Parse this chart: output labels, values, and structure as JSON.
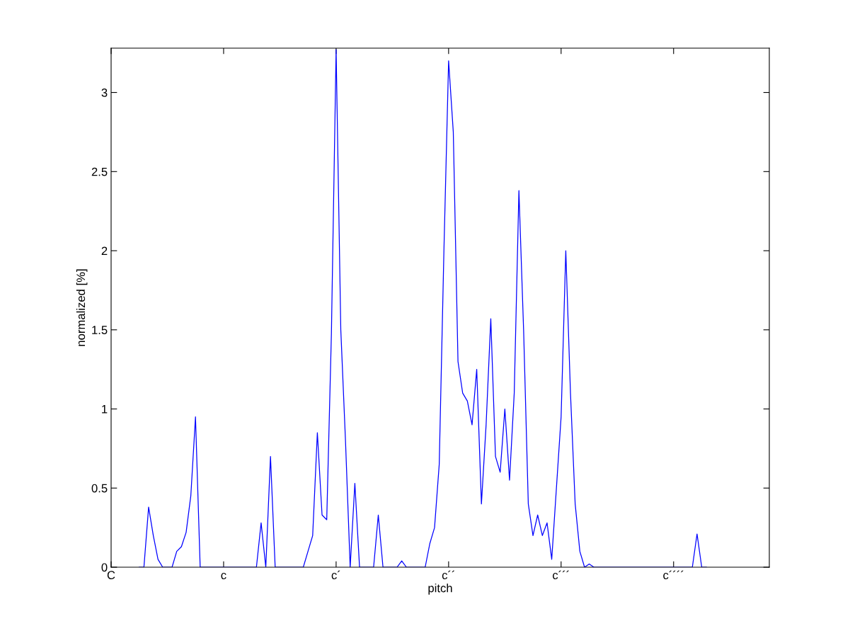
{
  "chart_data": {
    "type": "line",
    "xlabel": "pitch",
    "ylabel": "normalized [%]",
    "ylim": [
      0,
      3.28
    ],
    "yticks": [
      0,
      0.5,
      1,
      1.5,
      2,
      2.5,
      3
    ],
    "grid": false,
    "legend": false,
    "marker": "none",
    "line_style": "solid",
    "categories": [
      "C",
      null,
      null,
      null,
      null,
      null,
      null,
      null,
      null,
      null,
      null,
      null,
      null,
      null,
      null,
      null,
      null,
      null,
      null,
      null,
      null,
      null,
      null,
      null,
      "c",
      null,
      null,
      null,
      null,
      null,
      null,
      null,
      null,
      null,
      null,
      null,
      null,
      null,
      null,
      null,
      null,
      null,
      null,
      null,
      null,
      null,
      null,
      null,
      "c´",
      null,
      null,
      null,
      null,
      null,
      null,
      null,
      null,
      null,
      null,
      null,
      null,
      null,
      null,
      null,
      null,
      null,
      null,
      null,
      null,
      null,
      null,
      null,
      "c´´",
      null,
      null,
      null,
      null,
      null,
      null,
      null,
      null,
      null,
      null,
      null,
      null,
      null,
      null,
      null,
      null,
      null,
      null,
      null,
      null,
      null,
      null,
      null,
      "c´´´",
      null,
      null,
      null,
      null,
      null,
      null,
      null,
      null,
      null,
      null,
      null,
      null,
      null,
      null,
      null,
      null,
      null,
      null,
      null,
      null,
      null,
      null,
      null,
      "c´´´´",
      null,
      null,
      null,
      null,
      null,
      null,
      null,
      null,
      null,
      null,
      null,
      null,
      null,
      null,
      null,
      null,
      null,
      null,
      null,
      null
    ],
    "series": [
      {
        "color": "#0000ff",
        "values": [
          null,
          null,
          null,
          null,
          null,
          null,
          0,
          0,
          0.38,
          0.2,
          0.05,
          0,
          0,
          0,
          0.1,
          0.13,
          0.22,
          0.45,
          0.95,
          0,
          0,
          0,
          0,
          0,
          0,
          0,
          0,
          0,
          0,
          0,
          0,
          0,
          0.28,
          0,
          0.7,
          0,
          0,
          0,
          0,
          0,
          0,
          0,
          0.1,
          0.2,
          0.85,
          0.33,
          0.3,
          1.48,
          3.27,
          1.5,
          0.8,
          0,
          0.53,
          0,
          0,
          0,
          0,
          0.33,
          0,
          0,
          0,
          0,
          0.04,
          0,
          0,
          0,
          0,
          0,
          0.15,
          0.25,
          0.65,
          2.0,
          3.2,
          2.75,
          1.3,
          1.1,
          1.05,
          0.9,
          1.25,
          0.4,
          0.9,
          1.57,
          0.7,
          0.6,
          1.0,
          0.55,
          1.1,
          2.38,
          1.5,
          0.4,
          0.2,
          0.33,
          0.2,
          0.28,
          0.05,
          0.5,
          0.95,
          2.0,
          1.1,
          0.4,
          0.1,
          0,
          0.02,
          0,
          0,
          0,
          0,
          0,
          0,
          0,
          0,
          0,
          0,
          0,
          0,
          0,
          0,
          0,
          0,
          0,
          0,
          0,
          0,
          0,
          0,
          0.21,
          0,
          0,
          null,
          null,
          null,
          null,
          null,
          null,
          null,
          null,
          null,
          null,
          null,
          null,
          null
        ]
      }
    ]
  }
}
